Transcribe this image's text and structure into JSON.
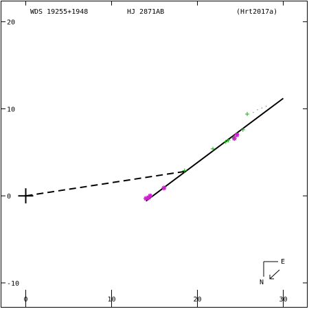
{
  "header": {
    "wds_id": "WDS 19255+1948",
    "discoverer": "HJ 2871AB",
    "reference": "(Hrt2017a)"
  },
  "compass": {
    "north": "N",
    "east": "E"
  },
  "chart_data": {
    "type": "scatter",
    "title": "",
    "xlabel": "",
    "ylabel": "",
    "xlim": [
      -3,
      33
    ],
    "ylim": [
      -13,
      22.5
    ],
    "x_ticks": [
      0,
      10,
      20,
      30
    ],
    "y_ticks": [
      -10,
      0,
      10,
      20
    ],
    "x_tick_labels": [
      "0",
      "10",
      "20",
      "30"
    ],
    "y_tick_labels": [
      "-10",
      "0",
      "10",
      "20"
    ],
    "grid": false,
    "legend": "none",
    "primary_star": [
      0,
      0
    ],
    "fit_line": {
      "from": [
        14,
        -0.6
      ],
      "to": [
        30,
        11.2
      ]
    },
    "residual_line": {
      "from": [
        0,
        0
      ],
      "to": [
        18.5,
        2.8
      ]
    },
    "series": [
      {
        "marker": "plus",
        "color": "#22aa22",
        "points": [
          [
            18.5,
            2.9
          ],
          [
            21.8,
            5.4
          ],
          [
            23.3,
            6.2
          ],
          [
            23.6,
            6.4
          ],
          [
            24.2,
            6.7
          ],
          [
            24.6,
            7.1
          ],
          [
            25.3,
            7.6
          ],
          [
            25.8,
            9.4
          ]
        ]
      },
      {
        "marker": "dot",
        "color": "#22aa22",
        "points": [
          [
            26.5,
            9.6
          ],
          [
            27.0,
            9.9
          ],
          [
            27.5,
            10.1
          ],
          [
            28.0,
            10.3
          ]
        ]
      },
      {
        "marker": "asterisk",
        "color": "#cc22cc",
        "points": [
          [
            14.0,
            -0.3
          ],
          [
            14.3,
            -0.2
          ],
          [
            14.5,
            0.0
          ],
          [
            16.1,
            0.9
          ],
          [
            24.3,
            6.6
          ],
          [
            24.6,
            7.0
          ]
        ]
      }
    ]
  }
}
